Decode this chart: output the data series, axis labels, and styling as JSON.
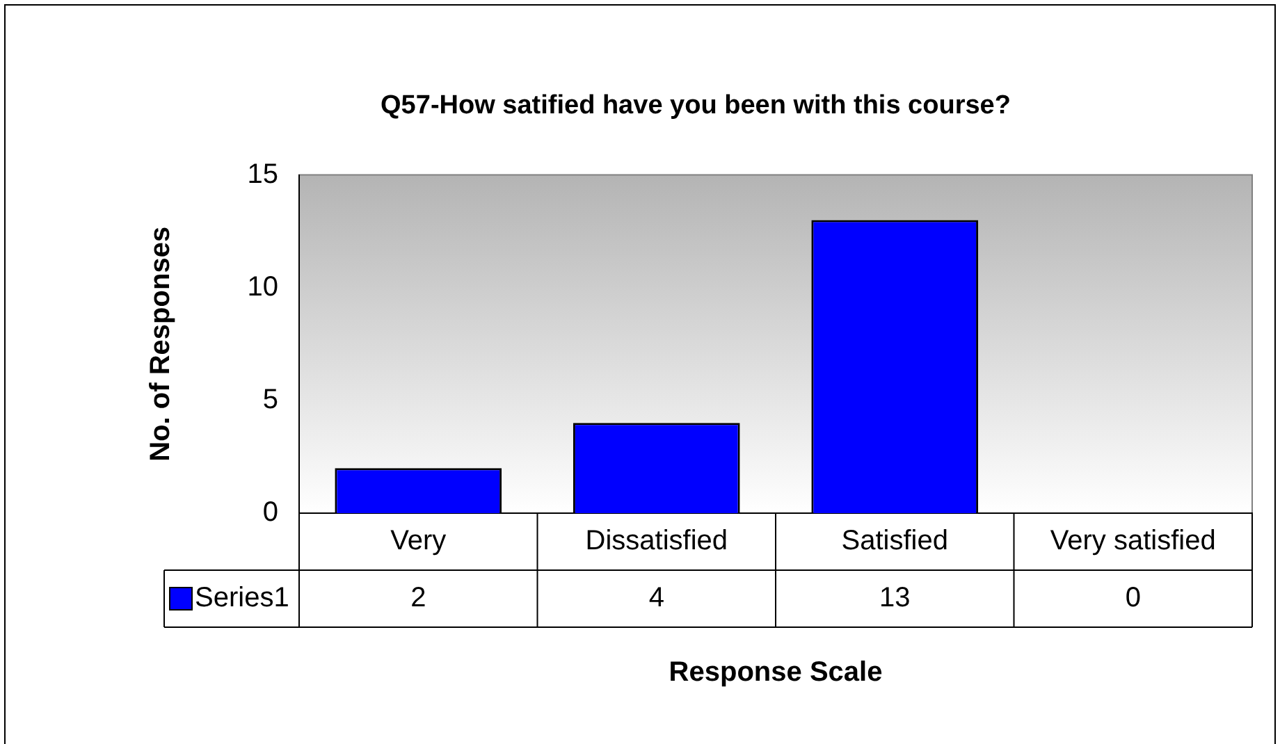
{
  "chart_data": {
    "type": "bar",
    "title": "Q57-How satified have you been with this course?",
    "xlabel": "Response Scale",
    "ylabel": "No. of Responses",
    "categories": [
      "Very",
      "Dissatisfied",
      "Satisfied",
      "Very satisfied"
    ],
    "series": [
      {
        "name": "Series1",
        "color": "#0000ff",
        "values": [
          2,
          4,
          13,
          0
        ]
      }
    ],
    "ylim": [
      0,
      15
    ],
    "yticks": [
      0,
      5,
      10,
      15
    ],
    "grid": false,
    "legend": "bottom",
    "data_labels": true
  }
}
